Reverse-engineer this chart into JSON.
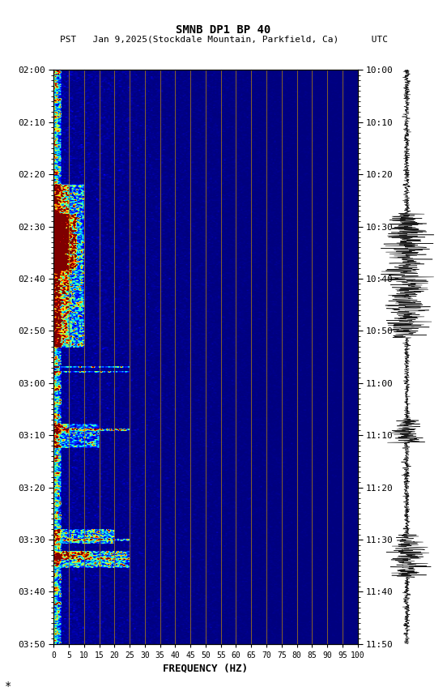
{
  "title_line1": "SMNB DP1 BP 40",
  "title_line2": "PST   Jan 9,2025(Stockdale Mountain, Parkfield, Ca)      UTC",
  "xlabel": "FREQUENCY (HZ)",
  "freq_min": 0,
  "freq_max": 100,
  "freq_ticks": [
    0,
    5,
    10,
    15,
    20,
    25,
    30,
    35,
    40,
    45,
    50,
    55,
    60,
    65,
    70,
    75,
    80,
    85,
    90,
    95,
    100
  ],
  "time_labels_left": [
    "02:00",
    "02:10",
    "02:20",
    "02:30",
    "02:40",
    "02:50",
    "03:00",
    "03:10",
    "03:20",
    "03:30",
    "03:40",
    "03:50"
  ],
  "time_labels_right": [
    "10:00",
    "10:10",
    "10:20",
    "10:30",
    "10:40",
    "10:50",
    "11:00",
    "11:10",
    "11:20",
    "11:30",
    "11:40",
    "11:50"
  ],
  "n_time": 600,
  "n_freq": 200,
  "colormap": "jet",
  "vline_color": "#b8860b",
  "vline_freq": [
    5,
    10,
    15,
    20,
    25,
    30,
    35,
    40,
    45,
    50,
    55,
    60,
    65,
    70,
    75,
    80,
    85,
    90,
    95,
    100
  ]
}
